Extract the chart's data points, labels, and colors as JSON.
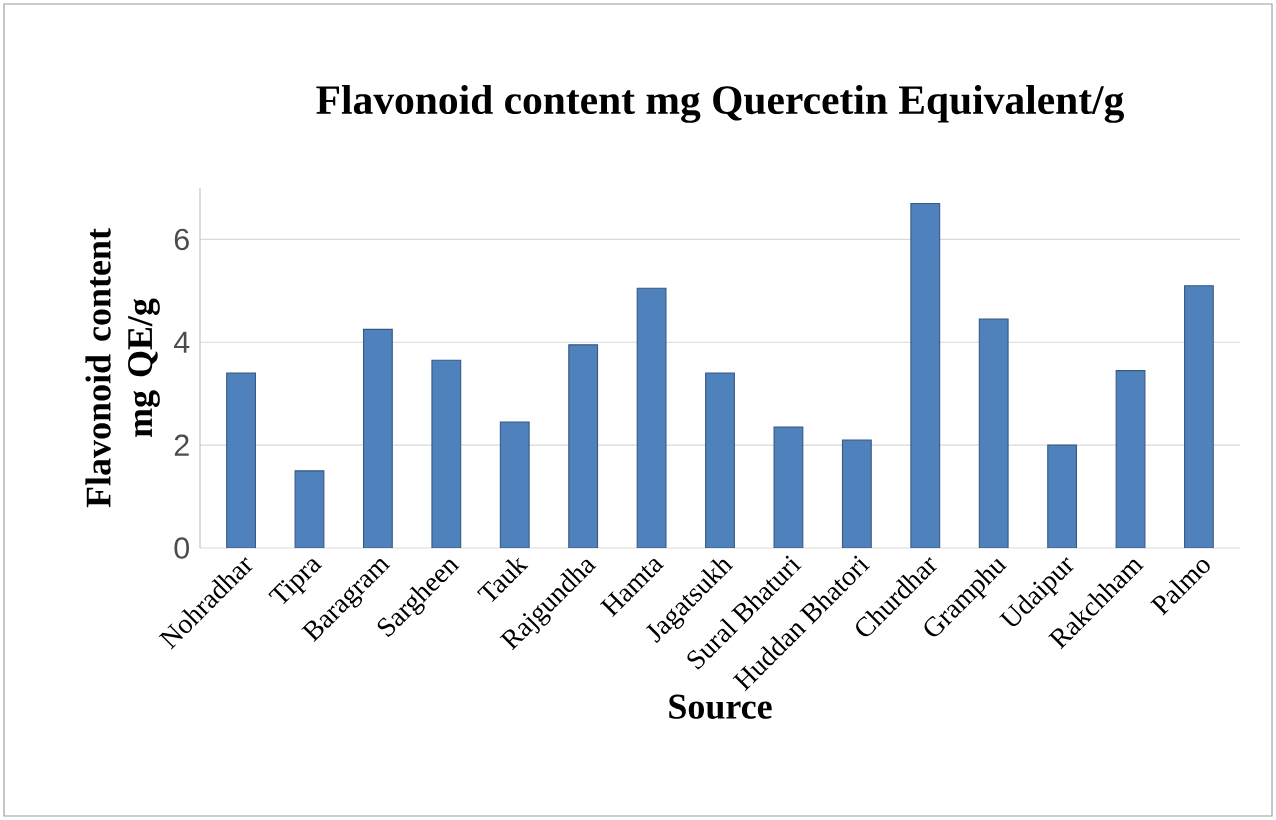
{
  "chart_data": {
    "type": "bar",
    "title": "Flavonoid content mg Quercetin Equivalent/g",
    "xlabel": "Source",
    "ylabel": "Flavonoid content mg QE/g",
    "categories": [
      "Nohradhar",
      "Tipra",
      "Baragram",
      "Sargheen",
      "Tauk",
      "Rajgundha",
      "Hamta",
      "Jagatsukh",
      "Sural Bhaturi",
      "Huddan Bhatori",
      "Churdhar",
      "Gramphu",
      "Udaipur",
      "Rakchham",
      "Palmo"
    ],
    "values": [
      3.4,
      1.5,
      4.25,
      3.65,
      2.45,
      3.95,
      5.05,
      3.4,
      2.35,
      2.1,
      6.7,
      4.45,
      2.0,
      3.45,
      5.1
    ],
    "color": "#4f81bd",
    "ylim": [
      0,
      7
    ],
    "yticks": [
      0,
      2,
      4,
      6
    ],
    "grid": "y"
  }
}
